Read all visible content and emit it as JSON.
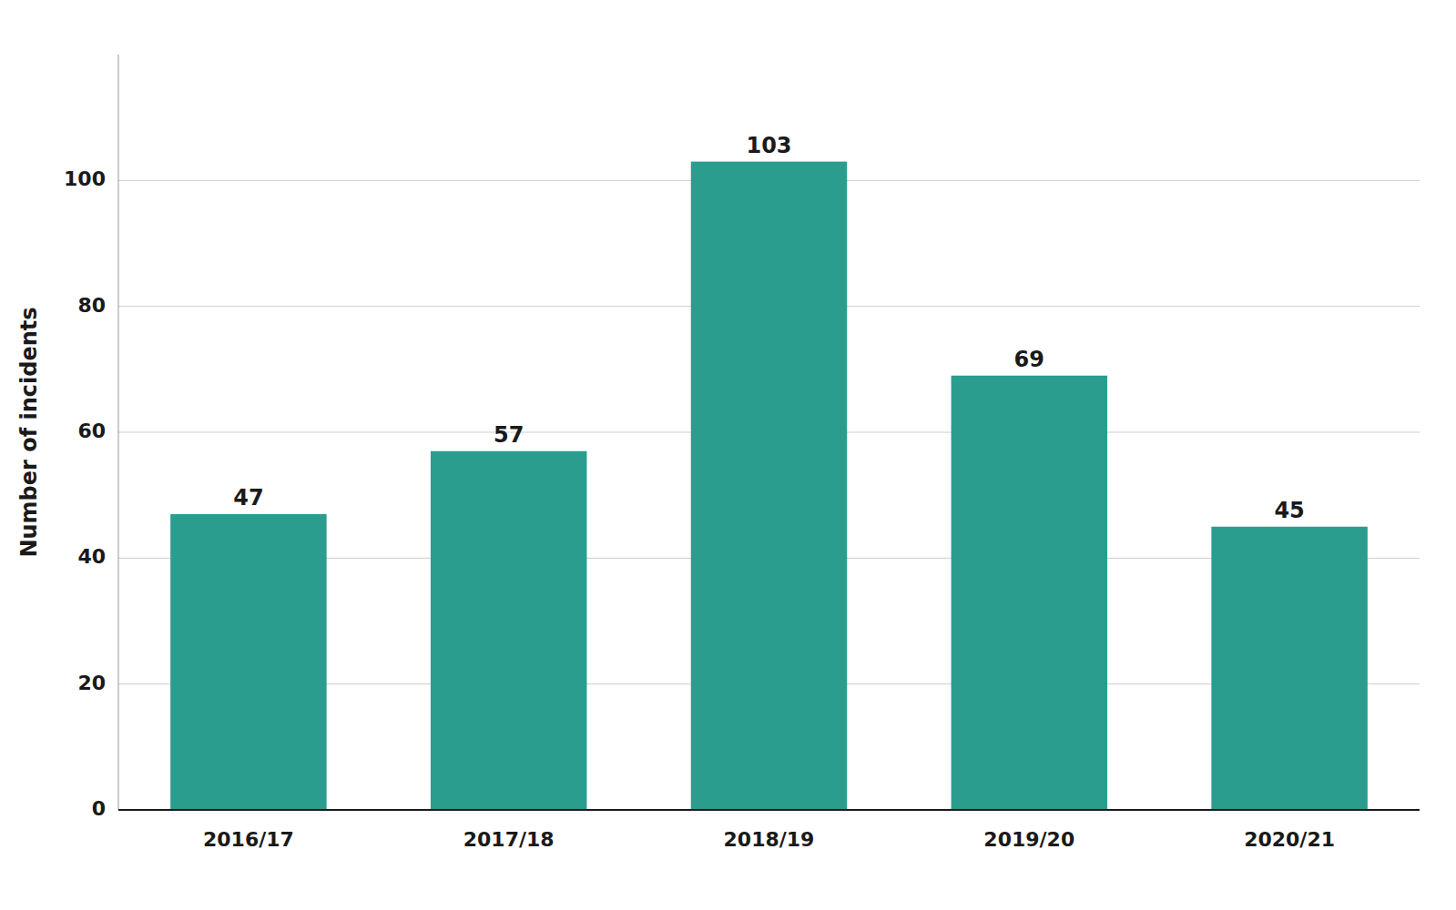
{
  "chart_data": {
    "type": "bar",
    "categories": [
      "2016/17",
      "2017/18",
      "2018/19",
      "2019/20",
      "2020/21"
    ],
    "values": [
      47,
      57,
      103,
      69,
      45
    ],
    "color": "#2a9d8f",
    "ylabel": "Number of incidents",
    "ylim": [
      0,
      120
    ],
    "yticks": [
      0,
      20,
      40,
      60,
      80,
      100
    ],
    "grid": true,
    "data_labels": true
  }
}
